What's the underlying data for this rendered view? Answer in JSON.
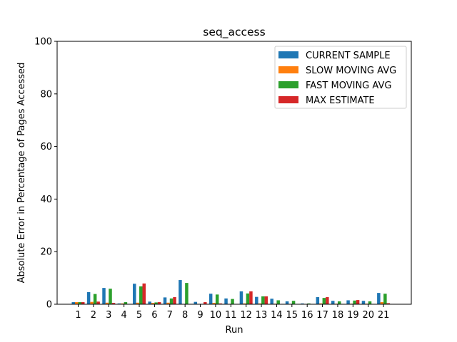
{
  "chart_data": {
    "type": "bar",
    "title": "seq_access",
    "xlabel": "Run",
    "ylabel": "Absolute Error in Percentage of Pages Accessed",
    "ylim": [
      0,
      100
    ],
    "yticks": [
      0,
      20,
      40,
      60,
      80,
      100
    ],
    "categories": [
      "1",
      "2",
      "3",
      "4",
      "5",
      "6",
      "7",
      "8",
      "9",
      "10",
      "11",
      "12",
      "13",
      "14",
      "15",
      "16",
      "17",
      "18",
      "19",
      "20",
      "21"
    ],
    "legend_position": "top-right",
    "grid": false,
    "series": [
      {
        "name": "CURRENT SAMPLE",
        "color": "#1f77b4",
        "values": [
          0.8,
          4.6,
          6.2,
          0.3,
          7.8,
          1.0,
          2.6,
          9.2,
          0.9,
          4.0,
          2.2,
          4.9,
          2.8,
          2.1,
          1.1,
          0.3,
          2.7,
          1.3,
          1.5,
          1.3,
          4.3
        ]
      },
      {
        "name": "SLOW MOVING AVG",
        "color": "#ff7f0e",
        "values": [
          0.8,
          0.9,
          0.6,
          0.3,
          0.6,
          0.5,
          0.6,
          0.0,
          0.0,
          0.5,
          0.0,
          0.3,
          0.3,
          0.2,
          0.0,
          0.0,
          0.3,
          0.2,
          0.2,
          0.2,
          0.8
        ]
      },
      {
        "name": "FAST MOVING AVG",
        "color": "#2ca02c",
        "values": [
          0.8,
          3.9,
          5.9,
          0.8,
          6.8,
          0.7,
          2.2,
          8.1,
          0.0,
          3.7,
          2.0,
          4.1,
          3.0,
          1.5,
          1.3,
          0.3,
          2.4,
          1.1,
          1.4,
          1.1,
          4.0
        ]
      },
      {
        "name": "MAX ESTIMATE",
        "color": "#d62728",
        "values": [
          0.8,
          1.0,
          0.5,
          0.0,
          7.9,
          0.8,
          2.7,
          0.0,
          0.8,
          0.3,
          0.0,
          4.9,
          3.0,
          0.0,
          0.0,
          0.0,
          2.7,
          0.0,
          1.6,
          0.0,
          0.4
        ]
      }
    ]
  }
}
